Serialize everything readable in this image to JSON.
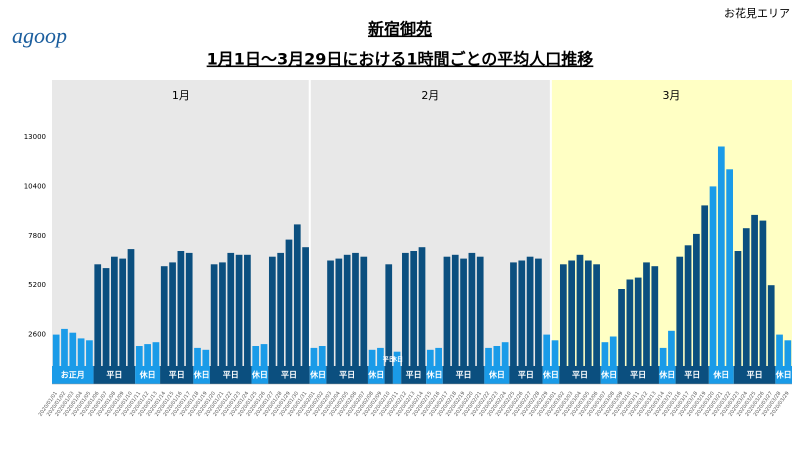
{
  "logo": "agoop",
  "area_label": "お花見エリア",
  "chart_data": {
    "type": "bar",
    "title": "新宿御苑",
    "subtitle": "1月1日〜3月29日における1時間ごとの平均人口推移",
    "ylim": [
      0,
      16000
    ],
    "yticks": [
      2600,
      5200,
      7800,
      10400,
      13000
    ],
    "grid": false,
    "months": [
      {
        "label": "1月",
        "days": 31,
        "color": "#e8e8e8"
      },
      {
        "label": "2月",
        "days": 29,
        "color": "#e8e8e8"
      },
      {
        "label": "3月",
        "days": 29,
        "color": "#ffffc4"
      }
    ],
    "periods": [
      {
        "label": "お正月",
        "days": 5,
        "color": "#1a9be8"
      },
      {
        "label": "平日",
        "days": 5,
        "color": "#0b4f7f"
      },
      {
        "label": "休日",
        "days": 3,
        "color": "#1a9be8"
      },
      {
        "label": "平日",
        "days": 4,
        "color": "#0b4f7f"
      },
      {
        "label": "休日",
        "days": 2,
        "color": "#1a9be8"
      },
      {
        "label": "平日",
        "days": 5,
        "color": "#0b4f7f"
      },
      {
        "label": "休日",
        "days": 2,
        "color": "#1a9be8"
      },
      {
        "label": "平日",
        "days": 5,
        "color": "#0b4f7f"
      },
      {
        "label": "休日",
        "days": 2,
        "color": "#1a9be8"
      },
      {
        "label": "平日",
        "days": 5,
        "color": "#0b4f7f"
      },
      {
        "label": "休日",
        "days": 2,
        "color": "#1a9be8"
      },
      {
        "label": "平日",
        "days": 1,
        "color": "#0b4f7f"
      },
      {
        "label": "休日",
        "days": 1,
        "color": "#1a9be8"
      },
      {
        "label": "平日",
        "days": 3,
        "color": "#0b4f7f"
      },
      {
        "label": "休日",
        "days": 2,
        "color": "#1a9be8"
      },
      {
        "label": "平日",
        "days": 5,
        "color": "#0b4f7f"
      },
      {
        "label": "休日",
        "days": 3,
        "color": "#1a9be8"
      },
      {
        "label": "平日",
        "days": 4,
        "color": "#0b4f7f"
      },
      {
        "label": "休日",
        "days": 2,
        "color": "#1a9be8"
      },
      {
        "label": "平日",
        "days": 5,
        "color": "#0b4f7f"
      },
      {
        "label": "休日",
        "days": 2,
        "color": "#1a9be8"
      },
      {
        "label": "平日",
        "days": 5,
        "color": "#0b4f7f"
      },
      {
        "label": "休日",
        "days": 2,
        "color": "#1a9be8"
      },
      {
        "label": "平日",
        "days": 4,
        "color": "#0b4f7f"
      },
      {
        "label": "休日",
        "days": 3,
        "color": "#1a9be8"
      },
      {
        "label": "平日",
        "days": 5,
        "color": "#0b4f7f"
      },
      {
        "label": "休日",
        "days": 2,
        "color": "#1a9be8"
      }
    ],
    "categories": [
      "2020/01/01",
      "2020/01/02",
      "2020/01/03",
      "2020/01/04",
      "2020/01/05",
      "2020/01/06",
      "2020/01/07",
      "2020/01/08",
      "2020/01/09",
      "2020/01/10",
      "2020/01/11",
      "2020/01/12",
      "2020/01/13",
      "2020/01/14",
      "2020/01/15",
      "2020/01/16",
      "2020/01/17",
      "2020/01/18",
      "2020/01/19",
      "2020/01/20",
      "2020/01/21",
      "2020/01/22",
      "2020/01/23",
      "2020/01/24",
      "2020/01/25",
      "2020/01/26",
      "2020/01/27",
      "2020/01/28",
      "2020/01/29",
      "2020/01/30",
      "2020/01/31",
      "2020/02/01",
      "2020/02/02",
      "2020/02/03",
      "2020/02/04",
      "2020/02/05",
      "2020/02/06",
      "2020/02/07",
      "2020/02/08",
      "2020/02/09",
      "2020/02/10",
      "2020/02/11",
      "2020/02/12",
      "2020/02/13",
      "2020/02/14",
      "2020/02/15",
      "2020/02/16",
      "2020/02/17",
      "2020/02/18",
      "2020/02/19",
      "2020/02/20",
      "2020/02/21",
      "2020/02/22",
      "2020/02/23",
      "2020/02/24",
      "2020/02/25",
      "2020/02/26",
      "2020/02/27",
      "2020/02/28",
      "2020/02/29",
      "2020/03/01",
      "2020/03/02",
      "2020/03/03",
      "2020/03/04",
      "2020/03/05",
      "2020/03/06",
      "2020/03/07",
      "2020/03/08",
      "2020/03/09",
      "2020/03/10",
      "2020/03/11",
      "2020/03/12",
      "2020/03/13",
      "2020/03/14",
      "2020/03/15",
      "2020/03/16",
      "2020/03/17",
      "2020/03/18",
      "2020/03/19",
      "2020/03/20",
      "2020/03/21",
      "2020/03/22",
      "2020/03/23",
      "2020/03/24",
      "2020/03/25",
      "2020/03/26",
      "2020/03/27",
      "2020/03/28",
      "2020/03/29"
    ],
    "values": [
      2600,
      2900,
      2700,
      2400,
      2300,
      6300,
      6100,
      6700,
      6600,
      7100,
      2000,
      2100,
      2200,
      6200,
      6400,
      7000,
      6900,
      1900,
      1800,
      6300,
      6400,
      6900,
      6800,
      6800,
      2000,
      2100,
      6700,
      6900,
      7600,
      8400,
      7200,
      1900,
      2000,
      6500,
      6600,
      6800,
      6900,
      6700,
      1800,
      1900,
      6300,
      1700,
      6900,
      7000,
      7200,
      1800,
      1900,
      6700,
      6800,
      6600,
      6900,
      6700,
      1900,
      2000,
      2200,
      6400,
      6500,
      6700,
      6600,
      2600,
      2300,
      6300,
      6500,
      6800,
      6500,
      6300,
      2200,
      2500,
      5000,
      5500,
      5600,
      6400,
      6200,
      1900,
      2800,
      6700,
      7300,
      7900,
      9400,
      10400,
      12500,
      11300,
      7000,
      8200,
      8900,
      8600,
      5200,
      2600,
      2300
    ]
  }
}
